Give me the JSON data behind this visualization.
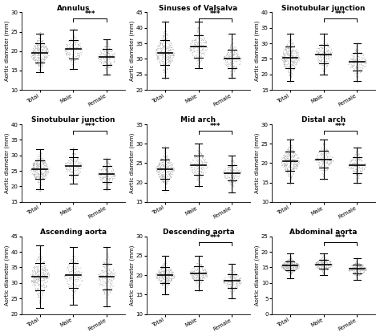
{
  "panels": [
    {
      "title": "Annulus",
      "ylabel": "Aortic diameter (mm)",
      "ylim": [
        10,
        30
      ],
      "yticks": [
        10,
        15,
        20,
        25,
        30
      ],
      "groups": [
        "Total",
        "Male",
        "Female"
      ],
      "means": [
        19.5,
        20.5,
        18.5
      ],
      "sds": [
        2.5,
        2.4,
        2.0
      ],
      "whisker_lo": [
        14.5,
        15.5,
        14.0
      ],
      "whisker_hi": [
        24.5,
        25.5,
        23.0
      ],
      "n_points": [
        400,
        200,
        200
      ],
      "show_sig": true,
      "sig_groups": [
        1,
        2
      ],
      "sig_label": "***"
    },
    {
      "title": "Sinuses of Valsalva",
      "ylabel": "Aortic diameter (mm)",
      "ylim": [
        20,
        45
      ],
      "yticks": [
        20,
        25,
        30,
        35,
        40,
        45
      ],
      "groups": [
        "Total",
        "Male",
        "Female"
      ],
      "means": [
        32.0,
        34.0,
        30.0
      ],
      "sds": [
        4.0,
        3.5,
        3.0
      ],
      "whisker_lo": [
        24.0,
        27.0,
        24.0
      ],
      "whisker_hi": [
        42.0,
        42.0,
        38.0
      ],
      "n_points": [
        400,
        200,
        200
      ],
      "show_sig": true,
      "sig_groups": [
        1,
        2
      ],
      "sig_label": "***"
    },
    {
      "title": "Sinotubular junction",
      "ylabel": "Aortic diameter (mm)",
      "ylim": [
        15,
        40
      ],
      "yticks": [
        15,
        20,
        25,
        30,
        35,
        40
      ],
      "groups": [
        "Total",
        "Male",
        "Female"
      ],
      "means": [
        25.5,
        26.5,
        24.0
      ],
      "sds": [
        3.5,
        3.0,
        2.8
      ],
      "whisker_lo": [
        18.0,
        20.0,
        18.0
      ],
      "whisker_hi": [
        33.0,
        33.0,
        30.0
      ],
      "n_points": [
        400,
        200,
        200
      ],
      "show_sig": true,
      "sig_groups": [
        1,
        2
      ],
      "sig_label": "***"
    },
    {
      "title": "Sinotubular junction",
      "ylabel": "Aortic diameter (mm)",
      "ylim": [
        15,
        40
      ],
      "yticks": [
        15,
        20,
        25,
        30,
        35,
        40
      ],
      "groups": [
        "Total",
        "Male",
        "Female"
      ],
      "means": [
        25.5,
        26.5,
        24.0
      ],
      "sds": [
        3.0,
        2.8,
        2.5
      ],
      "whisker_lo": [
        19.0,
        21.0,
        19.0
      ],
      "whisker_hi": [
        32.0,
        32.0,
        29.0
      ],
      "n_points": [
        400,
        200,
        200
      ],
      "show_sig": true,
      "sig_groups": [
        1,
        2
      ],
      "sig_label": "***"
    },
    {
      "title": "Mid arch",
      "ylabel": "Aortic diameter (mm)",
      "ylim": [
        15,
        35
      ],
      "yticks": [
        15,
        20,
        25,
        30,
        35
      ],
      "groups": [
        "Total",
        "Male",
        "Female"
      ],
      "means": [
        23.5,
        24.5,
        22.5
      ],
      "sds": [
        2.5,
        2.5,
        2.0
      ],
      "whisker_lo": [
        18.0,
        19.0,
        17.5
      ],
      "whisker_hi": [
        29.0,
        30.0,
        27.0
      ],
      "n_points": [
        400,
        200,
        200
      ],
      "show_sig": true,
      "sig_groups": [
        1,
        2
      ],
      "sig_label": "***"
    },
    {
      "title": "Distal arch",
      "ylabel": "Aortic diameter (mm)",
      "ylim": [
        10,
        30
      ],
      "yticks": [
        10,
        15,
        20,
        25,
        30
      ],
      "groups": [
        "Total",
        "Male",
        "Female"
      ],
      "means": [
        20.5,
        21.0,
        19.5
      ],
      "sds": [
        2.5,
        2.2,
        2.0
      ],
      "whisker_lo": [
        15.0,
        16.0,
        15.0
      ],
      "whisker_hi": [
        26.0,
        26.0,
        24.0
      ],
      "n_points": [
        400,
        200,
        200
      ],
      "show_sig": true,
      "sig_groups": [
        1,
        2
      ],
      "sig_label": "***"
    },
    {
      "title": "Ascending aorta",
      "ylabel": "Aortic diameter (mm)",
      "ylim": [
        20,
        45
      ],
      "yticks": [
        20,
        25,
        30,
        35,
        40,
        45
      ],
      "groups": [
        "Total",
        "Male",
        "Female"
      ],
      "means": [
        32.0,
        32.5,
        32.0
      ],
      "sds": [
        4.5,
        4.0,
        4.2
      ],
      "whisker_lo": [
        22.0,
        23.0,
        22.5
      ],
      "whisker_hi": [
        42.0,
        41.5,
        41.5
      ],
      "n_points": [
        400,
        200,
        200
      ],
      "show_sig": false,
      "sig_groups": [
        1,
        2
      ],
      "sig_label": ""
    },
    {
      "title": "Descending aorta",
      "ylabel": "Aortic diameter (mm)",
      "ylim": [
        10,
        30
      ],
      "yticks": [
        10,
        15,
        20,
        25,
        30
      ],
      "groups": [
        "Total",
        "Male",
        "Female"
      ],
      "means": [
        20.0,
        20.5,
        18.5
      ],
      "sds": [
        2.0,
        1.8,
        1.8
      ],
      "whisker_lo": [
        15.0,
        16.0,
        14.0
      ],
      "whisker_hi": [
        25.0,
        25.0,
        23.0
      ],
      "n_points": [
        400,
        200,
        200
      ],
      "show_sig": true,
      "sig_groups": [
        1,
        2
      ],
      "sig_label": "***"
    },
    {
      "title": "Abdominal aorta",
      "ylabel": "Aortic diameter (mm)",
      "ylim": [
        0,
        25
      ],
      "yticks": [
        0,
        5,
        10,
        15,
        20,
        25
      ],
      "groups": [
        "Total",
        "Male",
        "Female"
      ],
      "means": [
        15.5,
        16.0,
        14.5
      ],
      "sds": [
        1.5,
        1.5,
        1.4
      ],
      "whisker_lo": [
        11.5,
        12.5,
        11.0
      ],
      "whisker_hi": [
        19.5,
        19.5,
        18.0
      ],
      "n_points": [
        400,
        200,
        200
      ],
      "show_sig": true,
      "sig_groups": [
        1,
        2
      ],
      "sig_label": "***"
    }
  ],
  "dot_color": "#aaaaaa",
  "dot_alpha": 0.5,
  "dot_size": 0.8,
  "mean_line_color": "#000000",
  "background_color": "#ffffff",
  "title_fontsize": 6.5,
  "label_fontsize": 5.0,
  "tick_fontsize": 5.0
}
